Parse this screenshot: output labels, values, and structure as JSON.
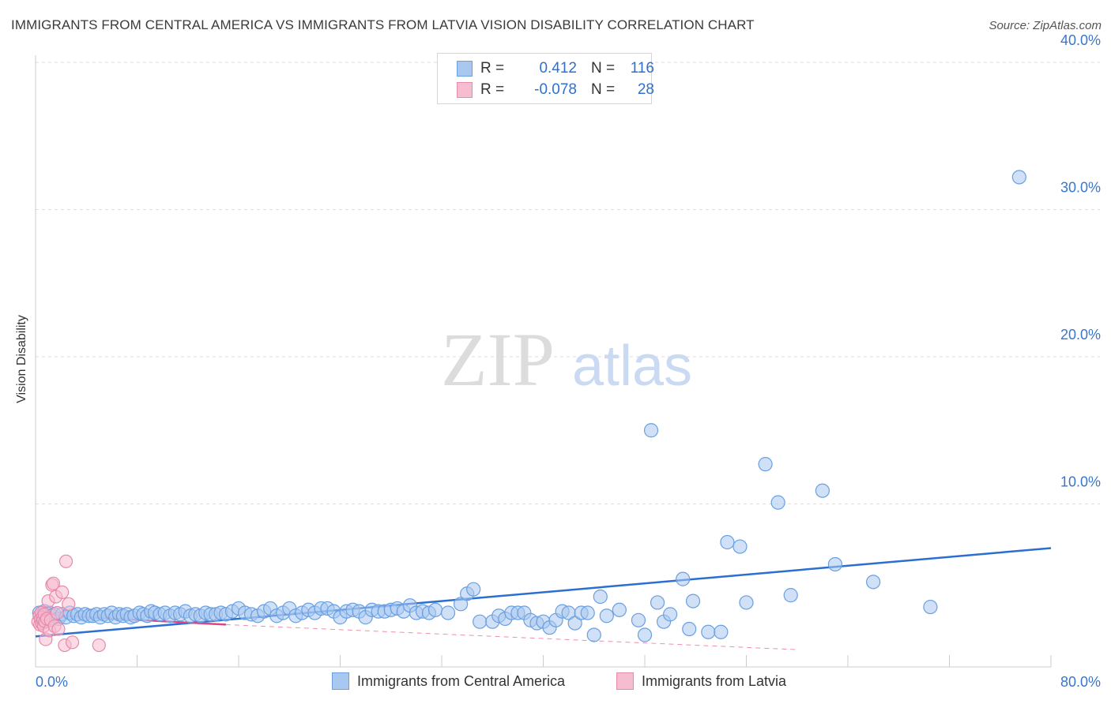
{
  "title": "IMMIGRANTS FROM CENTRAL AMERICA VS IMMIGRANTS FROM LATVIA VISION DISABILITY CORRELATION CHART",
  "source": "Source: ZipAtlas.com",
  "watermark": {
    "zip": "ZIP",
    "atlas": "atlas"
  },
  "legend": {
    "r_label": "R =",
    "n_label": "N =",
    "rows": [
      {
        "r": "0.412",
        "n": "116"
      },
      {
        "r": "-0.078",
        "n": "28"
      }
    ]
  },
  "chart_data": {
    "type": "scatter",
    "title": "IMMIGRANTS FROM CENTRAL AMERICA VS IMMIGRANTS FROM LATVIA VISION DISABILITY CORRELATION CHART",
    "xlabel": "",
    "ylabel": "Vision Disability",
    "xlim": [
      0,
      80
    ],
    "ylim": [
      0,
      42
    ],
    "x_tick_labels": [
      "0.0%",
      "80.0%"
    ],
    "y_ticks": [
      10,
      20,
      30,
      40
    ],
    "y_tick_labels": [
      "10.0%",
      "20.0%",
      "30.0%",
      "40.0%"
    ],
    "grid": true,
    "legend_position": "top-center",
    "series": [
      {
        "name": "Immigrants from Central America",
        "color": "#6a9fe0",
        "fill": "#a9c8f0",
        "trend": {
          "x": [
            0,
            80
          ],
          "y": [
            1.0,
            7.0
          ],
          "color": "#2b6fd1"
        },
        "points": [
          [
            0.3,
            2.6
          ],
          [
            0.5,
            2.4
          ],
          [
            0.7,
            2.7
          ],
          [
            0.9,
            2.3
          ],
          [
            1.1,
            2.6
          ],
          [
            1.3,
            2.4
          ],
          [
            1.5,
            2.5
          ],
          [
            1.8,
            2.2
          ],
          [
            2.1,
            2.5
          ],
          [
            2.4,
            2.3
          ],
          [
            2.7,
            2.6
          ],
          [
            3.0,
            2.4
          ],
          [
            3.3,
            2.5
          ],
          [
            3.6,
            2.3
          ],
          [
            3.9,
            2.5
          ],
          [
            4.2,
            2.4
          ],
          [
            4.5,
            2.4
          ],
          [
            4.8,
            2.5
          ],
          [
            5.1,
            2.3
          ],
          [
            5.4,
            2.5
          ],
          [
            5.7,
            2.4
          ],
          [
            6.0,
            2.6
          ],
          [
            6.3,
            2.3
          ],
          [
            6.6,
            2.5
          ],
          [
            6.9,
            2.4
          ],
          [
            7.2,
            2.5
          ],
          [
            7.5,
            2.3
          ],
          [
            7.8,
            2.4
          ],
          [
            8.2,
            2.6
          ],
          [
            8.5,
            2.5
          ],
          [
            8.8,
            2.4
          ],
          [
            9.1,
            2.7
          ],
          [
            9.4,
            2.6
          ],
          [
            9.8,
            2.5
          ],
          [
            10.2,
            2.6
          ],
          [
            10.6,
            2.4
          ],
          [
            11.0,
            2.6
          ],
          [
            11.4,
            2.5
          ],
          [
            11.8,
            2.7
          ],
          [
            12.2,
            2.4
          ],
          [
            12.6,
            2.5
          ],
          [
            13.0,
            2.4
          ],
          [
            13.4,
            2.6
          ],
          [
            13.8,
            2.5
          ],
          [
            14.2,
            2.5
          ],
          [
            14.6,
            2.6
          ],
          [
            15.0,
            2.5
          ],
          [
            15.5,
            2.7
          ],
          [
            16.0,
            2.9
          ],
          [
            16.5,
            2.6
          ],
          [
            17.0,
            2.5
          ],
          [
            17.5,
            2.4
          ],
          [
            18.0,
            2.7
          ],
          [
            18.5,
            2.9
          ],
          [
            19.0,
            2.4
          ],
          [
            19.5,
            2.6
          ],
          [
            20.0,
            2.9
          ],
          [
            20.5,
            2.4
          ],
          [
            21.0,
            2.6
          ],
          [
            21.5,
            2.8
          ],
          [
            22.0,
            2.6
          ],
          [
            22.5,
            2.9
          ],
          [
            23.0,
            2.9
          ],
          [
            23.5,
            2.7
          ],
          [
            24.0,
            2.3
          ],
          [
            24.5,
            2.7
          ],
          [
            25.0,
            2.8
          ],
          [
            25.5,
            2.7
          ],
          [
            26.0,
            2.3
          ],
          [
            26.5,
            2.8
          ],
          [
            27.0,
            2.7
          ],
          [
            27.5,
            2.7
          ],
          [
            28.0,
            2.8
          ],
          [
            28.5,
            2.9
          ],
          [
            29.0,
            2.7
          ],
          [
            29.5,
            3.1
          ],
          [
            30.0,
            2.6
          ],
          [
            30.5,
            2.7
          ],
          [
            31.0,
            2.6
          ],
          [
            31.5,
            2.8
          ],
          [
            32.5,
            2.6
          ],
          [
            33.5,
            3.2
          ],
          [
            34.0,
            3.9
          ],
          [
            34.5,
            4.2
          ],
          [
            35.0,
            2.0
          ],
          [
            36.0,
            2.0
          ],
          [
            36.5,
            2.4
          ],
          [
            37.0,
            2.2
          ],
          [
            37.5,
            2.6
          ],
          [
            38.0,
            2.6
          ],
          [
            38.5,
            2.6
          ],
          [
            39.0,
            2.1
          ],
          [
            39.5,
            1.9
          ],
          [
            40.0,
            2.0
          ],
          [
            40.5,
            1.6
          ],
          [
            41.0,
            2.1
          ],
          [
            41.5,
            2.7
          ],
          [
            42.0,
            2.6
          ],
          [
            42.5,
            1.9
          ],
          [
            43.0,
            2.6
          ],
          [
            43.5,
            2.6
          ],
          [
            44.0,
            1.1
          ],
          [
            44.5,
            3.7
          ],
          [
            45.0,
            2.4
          ],
          [
            46.0,
            2.8
          ],
          [
            47.5,
            2.1
          ],
          [
            48.0,
            1.1
          ],
          [
            48.5,
            15.0
          ],
          [
            49.0,
            3.3
          ],
          [
            49.5,
            2.0
          ],
          [
            50.0,
            2.5
          ],
          [
            51.0,
            4.9
          ],
          [
            51.5,
            1.5
          ],
          [
            51.8,
            3.4
          ],
          [
            53.0,
            1.3
          ],
          [
            54.0,
            1.3
          ]
        ]
      },
      {
        "name": "Immigrants from Latvia",
        "color": "#e88aab",
        "fill": "#f6bcd0",
        "trend": {
          "x": [
            0,
            15
          ],
          "y": [
            2.5,
            1.8
          ],
          "color": "#e0457f"
        },
        "points": [
          [
            0.2,
            2.0
          ],
          [
            0.3,
            2.4
          ],
          [
            0.35,
            1.8
          ],
          [
            0.4,
            2.2
          ],
          [
            0.45,
            2.6
          ],
          [
            0.5,
            1.9
          ],
          [
            0.55,
            2.3
          ],
          [
            0.6,
            2.1
          ],
          [
            0.65,
            1.7
          ],
          [
            0.7,
            2.5
          ],
          [
            0.75,
            2.0
          ],
          [
            0.8,
            0.8
          ],
          [
            0.9,
            2.2
          ],
          [
            1.0,
            3.4
          ],
          [
            1.1,
            1.4
          ],
          [
            1.2,
            2.1
          ],
          [
            1.3,
            4.5
          ],
          [
            1.4,
            4.6
          ],
          [
            1.5,
            1.7
          ],
          [
            1.6,
            3.7
          ],
          [
            1.7,
            2.6
          ],
          [
            1.8,
            1.5
          ],
          [
            2.1,
            4.0
          ],
          [
            2.3,
            0.4
          ],
          [
            2.4,
            6.1
          ],
          [
            2.6,
            3.2
          ],
          [
            2.9,
            0.6
          ],
          [
            5.0,
            0.4
          ]
        ]
      }
    ],
    "extra_points_central_america": [
      [
        54.5,
        7.4
      ],
      [
        55.5,
        7.1
      ],
      [
        56.0,
        3.3
      ],
      [
        57.5,
        12.7
      ],
      [
        58.5,
        10.1
      ],
      [
        59.5,
        3.8
      ],
      [
        62.0,
        10.9
      ],
      [
        63.0,
        5.9
      ],
      [
        66.0,
        4.7
      ],
      [
        70.5,
        3.0
      ],
      [
        77.5,
        32.2
      ]
    ]
  },
  "bottom_legend": {
    "items": [
      "Immigrants from Central America",
      "Immigrants from Latvia"
    ]
  }
}
